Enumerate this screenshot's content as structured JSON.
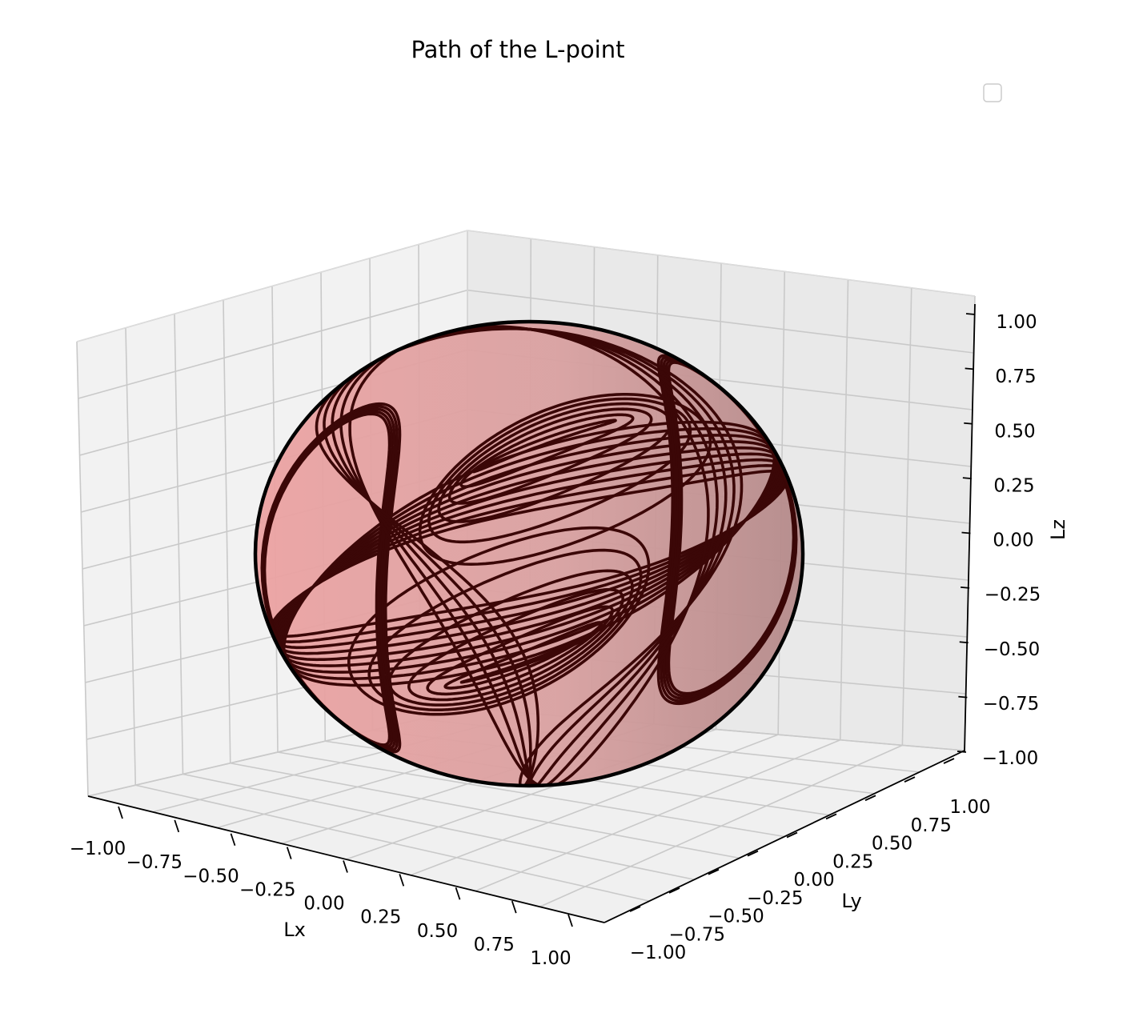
{
  "chart_data": {
    "type": "line",
    "subtype": "3d-trajectory-on-sphere",
    "title": "Path of the L-point",
    "xlabel": "Lx",
    "ylabel": "Ly",
    "zlabel": "Lz",
    "xlim": [
      -1.0,
      1.0
    ],
    "ylim": [
      -1.0,
      1.0
    ],
    "zlim": [
      -1.0,
      1.0
    ],
    "x_ticks": [
      "−1.00",
      "−0.75",
      "−0.50",
      "−0.25",
      "0.00",
      "0.25",
      "0.50",
      "0.75",
      "1.00"
    ],
    "y_ticks": [
      "−1.00",
      "−0.75",
      "−0.50",
      "−0.25",
      "0.00",
      "0.25",
      "0.50",
      "0.75",
      "1.00"
    ],
    "z_ticks": [
      "1.00",
      "0.75",
      "0.50",
      "0.25",
      "0.00",
      "−0.25",
      "−0.50",
      "−0.75",
      "−1.00"
    ],
    "grid": true,
    "legend": {
      "placement": "top-right",
      "entries": []
    },
    "surface": {
      "shape": "unit sphere",
      "color": "#e59a9a",
      "edge_shade": "#b88888"
    },
    "series": [
      {
        "color": "#3b0707",
        "description_of_path": "dense trajectory wound over the unit sphere surface"
      }
    ],
    "colors": {
      "trajectory": "#3b0707",
      "sphere": "#e59a9a",
      "pane": "#f2f2f2",
      "grid": "#c9c9c9"
    }
  }
}
